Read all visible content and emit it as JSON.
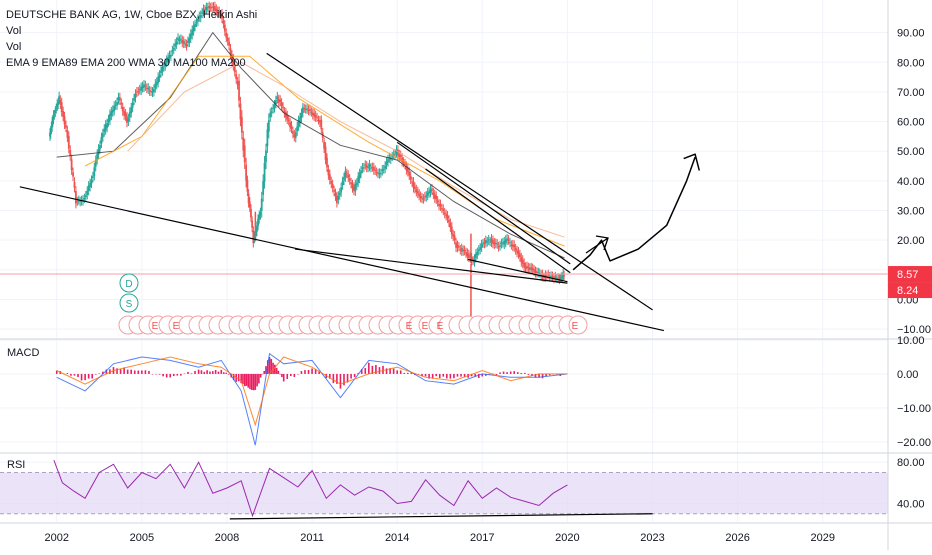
{
  "legend": {
    "title": "DEUTSCHE BANK AG, 1W, Cboe BZX, Heikin Ashi",
    "vol1": "Vol",
    "vol2": "Vol",
    "indicators": "EMA 9 EMA89 EMA 200 WMA 30 MA100 MA200"
  },
  "price_tags": {
    "current": "8.57",
    "other": "8.24",
    "current_color": "#f23645",
    "other_color": "#f23645"
  },
  "markers": {
    "dividend": "D",
    "split": "S",
    "earnings": "E"
  },
  "colors": {
    "up": "#26a69a",
    "down": "#ef5350",
    "macd_hist": "#e91e63",
    "rsi": "#9c27b0",
    "rsi_band": "#e6dcf5",
    "trendline": "#000000"
  },
  "chart_data": [
    {
      "type": "candlestick",
      "name": "price",
      "title": "DEUTSCHE BANK AG, 1W, Cboe BZX, Heikin Ashi",
      "y_ticks": [
        "90.00",
        "80.00",
        "70.00",
        "60.00",
        "50.00",
        "40.00",
        "30.00",
        "20.00",
        "10.00",
        "0.00",
        "−10.00"
      ],
      "ylim": [
        -13,
        101
      ],
      "x_ticks": [
        "2002",
        "2005",
        "2008",
        "2011",
        "2014",
        "2017",
        "2020",
        "2023",
        "2026",
        "2029"
      ],
      "xlim": [
        2000.0,
        2031.3
      ],
      "approx_path": [
        [
          2001.75,
          55
        ],
        [
          2001.9,
          62
        ],
        [
          2002.1,
          68
        ],
        [
          2002.4,
          55
        ],
        [
          2002.7,
          33
        ],
        [
          2003.0,
          34
        ],
        [
          2003.3,
          42
        ],
        [
          2003.6,
          55
        ],
        [
          2003.9,
          62
        ],
        [
          2004.2,
          68
        ],
        [
          2004.5,
          60
        ],
        [
          2004.8,
          70
        ],
        [
          2005.1,
          72
        ],
        [
          2005.4,
          70
        ],
        [
          2005.7,
          77
        ],
        [
          2006.0,
          82
        ],
        [
          2006.3,
          88
        ],
        [
          2006.6,
          86
        ],
        [
          2006.9,
          93
        ],
        [
          2007.2,
          98
        ],
        [
          2007.5,
          99
        ],
        [
          2007.8,
          96
        ],
        [
          2008.1,
          85
        ],
        [
          2008.4,
          72
        ],
        [
          2008.7,
          40
        ],
        [
          2008.95,
          20
        ],
        [
          2009.2,
          30
        ],
        [
          2009.5,
          62
        ],
        [
          2009.8,
          68
        ],
        [
          2010.1,
          62
        ],
        [
          2010.4,
          55
        ],
        [
          2010.7,
          65
        ],
        [
          2011.0,
          63
        ],
        [
          2011.3,
          60
        ],
        [
          2011.6,
          42
        ],
        [
          2011.9,
          33
        ],
        [
          2012.2,
          43
        ],
        [
          2012.5,
          37
        ],
        [
          2012.8,
          45
        ],
        [
          2013.1,
          45
        ],
        [
          2013.4,
          42
        ],
        [
          2013.7,
          47
        ],
        [
          2014.0,
          50
        ],
        [
          2014.3,
          45
        ],
        [
          2014.6,
          38
        ],
        [
          2014.9,
          34
        ],
        [
          2015.2,
          37
        ],
        [
          2015.5,
          32
        ],
        [
          2015.8,
          27
        ],
        [
          2016.1,
          18
        ],
        [
          2016.4,
          16
        ],
        [
          2016.7,
          13
        ],
        [
          2017.0,
          19
        ],
        [
          2017.3,
          20
        ],
        [
          2017.6,
          18
        ],
        [
          2017.9,
          20
        ],
        [
          2018.2,
          17
        ],
        [
          2018.5,
          11
        ],
        [
          2018.8,
          10
        ],
        [
          2019.1,
          8
        ],
        [
          2019.4,
          8
        ],
        [
          2019.7,
          7
        ],
        [
          2019.9,
          8.5
        ]
      ],
      "emphasized_points": [
        [
          2009.0,
          19.6
        ],
        [
          2016.6,
          12.2
        ]
      ],
      "moving_averages": [
        [
          [
            2002.0,
            48
          ],
          [
            2004.0,
            50
          ],
          [
            2006.0,
            68
          ],
          [
            2007.5,
            90
          ],
          [
            2008.5,
            78
          ],
          [
            2010.0,
            63
          ],
          [
            2012.0,
            52
          ],
          [
            2014.0,
            47
          ],
          [
            2016.0,
            33
          ],
          [
            2018.0,
            22
          ],
          [
            2019.9,
            14
          ]
        ],
        [
          [
            2003.0,
            45
          ],
          [
            2005.0,
            55
          ],
          [
            2007.0,
            82
          ],
          [
            2008.8,
            82
          ],
          [
            2010.5,
            68
          ],
          [
            2013.0,
            53
          ],
          [
            2015.5,
            40
          ],
          [
            2017.5,
            27
          ],
          [
            2019.9,
            18
          ]
        ],
        [
          [
            2004.5,
            50
          ],
          [
            2006.5,
            70
          ],
          [
            2008.5,
            80
          ],
          [
            2010.0,
            72
          ],
          [
            2012.0,
            60
          ],
          [
            2014.0,
            50
          ],
          [
            2016.0,
            38
          ],
          [
            2018.0,
            27
          ],
          [
            2019.9,
            21
          ]
        ]
      ],
      "reference_lines": [
        {
          "label": "8.57",
          "value": 8.57
        }
      ],
      "drawings": [
        {
          "kind": "trendline",
          "points": [
            [
              2000.7,
              38
            ],
            [
              2023.4,
              -10.5
            ]
          ]
        },
        {
          "kind": "trendline",
          "points": [
            [
              2009.4,
              83
            ],
            [
              2023.0,
              -3.5
            ]
          ]
        },
        {
          "kind": "trendline",
          "points": [
            [
              2015.0,
              44
            ],
            [
              2020.1,
              9
            ]
          ]
        },
        {
          "kind": "trendline",
          "points": [
            [
              2014.0,
              53
            ],
            [
              2020.1,
              12
            ]
          ]
        },
        {
          "kind": "trendline",
          "points": [
            [
              2010.4,
              17
            ],
            [
              2020.0,
              5.5
            ]
          ]
        },
        {
          "kind": "trendline",
          "points": [
            [
              2016.5,
              13.5
            ],
            [
              2020.0,
              6
            ]
          ]
        },
        {
          "kind": "projection",
          "points": [
            [
              2020.2,
              10
            ],
            [
              2020.8,
              15
            ],
            [
              2021.2,
              20
            ],
            [
              2021.5,
              13
            ],
            [
              2022.5,
              17
            ],
            [
              2023.5,
              25
            ],
            [
              2024.2,
              40
            ],
            [
              2024.5,
              48
            ]
          ]
        },
        {
          "kind": "arrowhead",
          "points": [
            [
              2024.1,
              47.5
            ],
            [
              2024.5,
              49
            ],
            [
              2024.65,
              43.5
            ]
          ]
        }
      ]
    },
    {
      "type": "line",
      "name": "MACD",
      "title": "MACD",
      "y_ticks": [
        "10.00",
        "0.00",
        "−10.00",
        "−20.00"
      ],
      "ylim": [
        -23,
        10
      ],
      "x": [
        2002,
        2003,
        2004,
        2005,
        2006,
        2007,
        2007.8,
        2008.5,
        2009,
        2009.5,
        2010,
        2011,
        2012,
        2013,
        2014,
        2015,
        2016,
        2017,
        2018,
        2019,
        2020
      ],
      "series": [
        {
          "values": [
            -1,
            -5,
            3,
            5,
            4,
            2,
            4,
            -5,
            -21,
            6,
            3,
            4,
            -7,
            4,
            3,
            -2,
            -3,
            0,
            -1,
            -1,
            0
          ]
        },
        {
          "values": [
            1,
            -3,
            1,
            3,
            5,
            3,
            2,
            -2,
            -15,
            0,
            5,
            2,
            -3,
            0,
            2,
            -1,
            -2,
            1,
            -2,
            0,
            0
          ]
        }
      ],
      "histogram": [
        1,
        -2,
        2,
        1,
        -1,
        1,
        1,
        -3,
        -5,
        5,
        -2,
        2,
        -4,
        3,
        1,
        -1,
        -1,
        -1,
        1,
        -1,
        0
      ]
    },
    {
      "type": "line",
      "name": "RSI",
      "title": "RSI",
      "y_ticks": [
        "80.00",
        "40.00"
      ],
      "ylim": [
        22,
        88
      ],
      "band": [
        30,
        70
      ],
      "x": [
        2001.9,
        2002.2,
        2002.6,
        2003.0,
        2003.5,
        2004.0,
        2004.5,
        2005.0,
        2005.5,
        2006.0,
        2006.5,
        2007.0,
        2007.5,
        2008.0,
        2008.5,
        2008.9,
        2009.5,
        2010.0,
        2010.5,
        2011.0,
        2011.5,
        2012.0,
        2012.5,
        2013.0,
        2013.5,
        2014.0,
        2014.5,
        2015.0,
        2015.5,
        2016.0,
        2016.5,
        2017.0,
        2017.5,
        2018.0,
        2018.5,
        2019.0,
        2019.5,
        2020.0
      ],
      "values": [
        82,
        60,
        52,
        45,
        70,
        78,
        55,
        70,
        64,
        78,
        55,
        80,
        50,
        55,
        62,
        28,
        74,
        65,
        56,
        72,
        45,
        58,
        48,
        56,
        52,
        40,
        42,
        63,
        48,
        38,
        62,
        45,
        55,
        46,
        42,
        38,
        50,
        58
      ],
      "drawings": [
        {
          "kind": "trendline",
          "points": [
            [
              2008.1,
              25
            ],
            [
              2023.0,
              30
            ]
          ]
        }
      ]
    }
  ]
}
